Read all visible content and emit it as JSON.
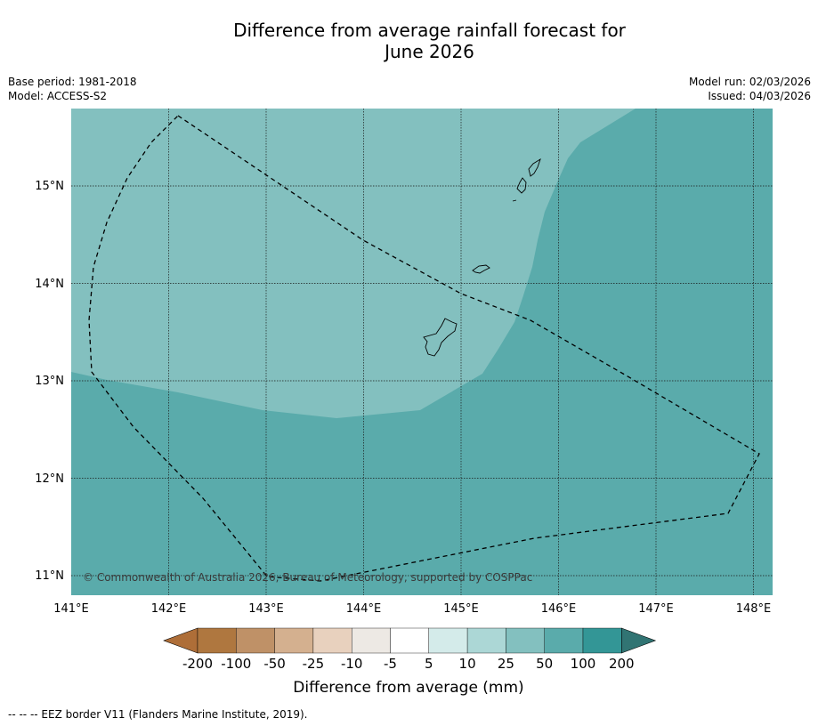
{
  "title_line1": "Difference from average rainfall forecast for",
  "title_line2": "June 2026",
  "base_period": "Base period: 1981-2018",
  "model": "Model: ACCESS-S2",
  "model_run": "Model run: 02/03/2026",
  "issued": "Issued: 04/03/2026",
  "map": {
    "lon_ticks": [
      "141°E",
      "142°E",
      "143°E",
      "144°E",
      "145°E",
      "146°E",
      "147°E",
      "148°E"
    ],
    "lat_ticks": [
      "15°N",
      "14°N",
      "13°N",
      "12°N",
      "11°N"
    ],
    "copyright": "© Commonwealth of Australia 2026, Bureau of Meteorology, supported by COSPPac",
    "categories_shown": [
      {
        "range": "25 to 50",
        "color": "#83c0bf"
      },
      {
        "range": "50 to 100",
        "color": "#5aabab"
      }
    ]
  },
  "colorbar": {
    "tick_labels": [
      "-200",
      "-100",
      "-50",
      "-25",
      "-10",
      "-5",
      "5",
      "10",
      "25",
      "50",
      "100",
      "200"
    ],
    "colors": [
      "#ae6e38",
      "#af773f",
      "#bf9167",
      "#d4b08f",
      "#e8d1be",
      "#ede9e4",
      "#ffffff",
      "#d4ebea",
      "#acd7d6",
      "#83c0bf",
      "#5aabab",
      "#339696",
      "#317473"
    ],
    "label": "Difference from average (mm)"
  },
  "footer_note": "--  --  -- EEZ border V11 (Flanders Marine Institute, 2019)."
}
